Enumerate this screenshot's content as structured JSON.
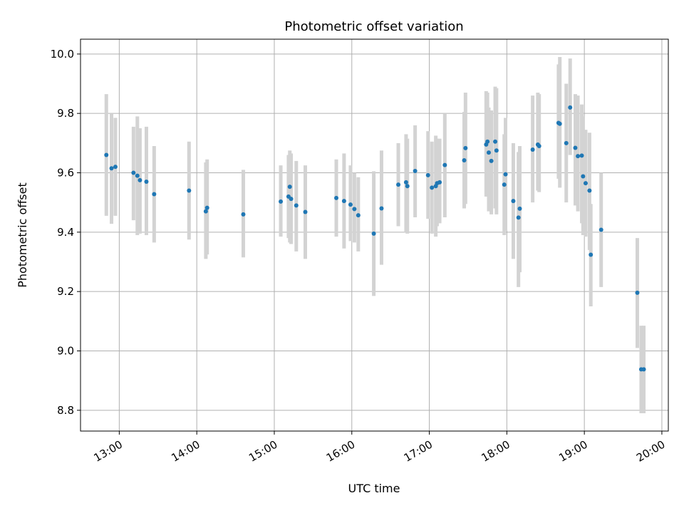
{
  "colors": {
    "point": "#1f77b4",
    "errorbar": "#d3d3d3",
    "grid": "#b0b0b0",
    "axis": "#000000"
  },
  "chart_data": {
    "type": "scatter",
    "title": "Photometric offset variation",
    "xlabel": "UTC time",
    "ylabel": "Photometric offset",
    "xlim": [
      "12:30",
      "20:05"
    ],
    "ylim": [
      8.73,
      10.05
    ],
    "grid": true,
    "x_ticks": [
      "13:00",
      "14:00",
      "15:00",
      "16:00",
      "17:00",
      "18:00",
      "19:00",
      "20:00"
    ],
    "y_ticks": [
      "8.8",
      "9.0",
      "9.2",
      "9.4",
      "9.6",
      "9.8",
      "10.0"
    ],
    "series": [
      {
        "x": [
          "12:50",
          "12:54",
          "12:57",
          "13:11",
          "13:14",
          "13:16",
          "13:21",
          "13:27",
          "13:54",
          "14:07",
          "14:08",
          "14:36",
          "15:05",
          "15:11",
          "15:12",
          "15:13",
          "15:17",
          "15:24",
          "15:48",
          "15:54",
          "15:59",
          "16:02",
          "16:05",
          "16:17",
          "16:23",
          "16:36",
          "16:42",
          "16:43",
          "16:49",
          "16:59",
          "17:02",
          "17:05",
          "17:06",
          "17:08",
          "17:12",
          "17:27",
          "17:28",
          "17:44",
          "17:45",
          "17:46",
          "17:48",
          "17:51",
          "17:52",
          "17:58",
          "17:59",
          "18:05",
          "18:09",
          "18:10",
          "18:20",
          "18:24",
          "18:25",
          "18:40",
          "18:41",
          "18:46",
          "18:49",
          "18:53",
          "18:55",
          "18:58",
          "18:59",
          "19:01",
          "19:04",
          "19:05",
          "19:13",
          "19:41",
          "19:44",
          "19:46"
        ],
        "y": [
          9.66,
          9.615,
          9.62,
          9.6,
          9.59,
          9.575,
          9.57,
          9.528,
          9.54,
          9.47,
          9.482,
          9.46,
          9.503,
          9.52,
          9.553,
          9.512,
          9.49,
          9.468,
          9.515,
          9.505,
          9.493,
          9.478,
          9.457,
          9.395,
          9.48,
          9.56,
          9.568,
          9.555,
          9.606,
          9.592,
          9.55,
          9.555,
          9.565,
          9.568,
          9.626,
          9.642,
          9.683,
          9.695,
          9.705,
          9.668,
          9.64,
          9.705,
          9.675,
          9.56,
          9.595,
          9.505,
          9.449,
          9.479,
          9.678,
          9.695,
          9.69,
          9.768,
          9.765,
          9.7,
          9.82,
          9.684,
          9.656,
          9.658,
          9.588,
          9.565,
          9.54,
          9.324,
          9.408,
          9.196,
          8.938,
          8.938
        ],
        "err_low": [
          9.455,
          9.428,
          9.455,
          9.44,
          9.39,
          9.395,
          9.39,
          9.365,
          9.375,
          9.31,
          9.325,
          9.315,
          9.385,
          9.38,
          9.365,
          9.36,
          9.335,
          9.31,
          9.385,
          9.345,
          9.37,
          9.365,
          9.335,
          9.185,
          9.29,
          9.42,
          9.4,
          9.395,
          9.45,
          9.445,
          9.395,
          9.385,
          9.42,
          9.43,
          9.45,
          9.48,
          9.495,
          9.52,
          9.52,
          9.47,
          9.46,
          9.48,
          9.46,
          9.39,
          9.405,
          9.31,
          9.215,
          9.265,
          9.5,
          9.54,
          9.535,
          9.58,
          9.55,
          9.5,
          9.66,
          9.49,
          9.47,
          9.43,
          9.39,
          9.385,
          9.34,
          9.15,
          9.215,
          9.01,
          8.79,
          8.79
        ],
        "err_high": [
          9.865,
          9.8,
          9.785,
          9.755,
          9.79,
          9.75,
          9.755,
          9.69,
          9.705,
          9.635,
          9.645,
          9.61,
          9.625,
          9.66,
          9.675,
          9.665,
          9.64,
          9.625,
          9.645,
          9.665,
          9.625,
          9.6,
          9.585,
          9.605,
          9.675,
          9.7,
          9.73,
          9.715,
          9.76,
          9.74,
          9.705,
          9.725,
          9.715,
          9.715,
          9.8,
          9.805,
          9.87,
          9.875,
          9.87,
          9.82,
          9.81,
          9.89,
          9.885,
          9.73,
          9.785,
          9.7,
          9.67,
          9.69,
          9.86,
          9.87,
          9.865,
          9.965,
          9.99,
          9.9,
          9.985,
          9.865,
          9.86,
          9.83,
          9.79,
          9.745,
          9.735,
          9.495,
          9.6,
          9.38,
          9.085,
          9.085
        ]
      }
    ]
  }
}
